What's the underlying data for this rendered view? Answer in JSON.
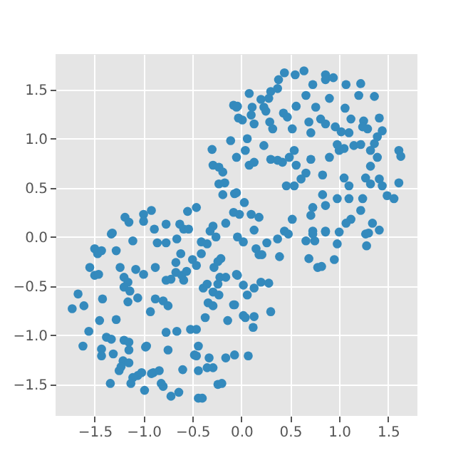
{
  "chart_data": {
    "type": "scatter",
    "x": [
      0.44,
      0.38,
      0.55,
      0.64,
      0.86,
      0.86,
      0.94,
      0.73,
      1.07,
      1.22,
      1.2,
      1.36,
      0.3,
      0.28,
      0.2,
      0.08,
      -0.04,
      0.11,
      0.1,
      0.23,
      0.25,
      0.13,
      0.01,
      0.29,
      0.43,
      0.47,
      0.56,
      0.76,
      0.69,
      0.81,
      0.86,
      0.96,
      1.06,
      1.12,
      1.25,
      1.41,
      1.29,
      1.44,
      1.1,
      1.02,
      0.71,
      0.52,
      0.32,
      0.06,
      0.04,
      0.23,
      0.3,
      0.42,
      0.49,
      0.54,
      0.56,
      0.66,
      0.61,
      0.46,
      0.54,
      0.83,
      0.71,
      0.9,
      1.05,
      1.0,
      1.15,
      1.22,
      1.36,
      1.32,
      1.39,
      1.61,
      1.63,
      1.32,
      1.05,
      1.1,
      1.27,
      1.32,
      1.41,
      1.44,
      1.61,
      1.24,
      1.22,
      1.1,
      0.98,
      0.83,
      0.86,
      0.73,
      0.71,
      1.56,
      1.49,
      -0.07,
      0.03,
      -0.02,
      0.1,
      0.18,
      0.52,
      1.12,
      1.07,
      1.34,
      1.41,
      1.27,
      0.73,
      0.86,
      0.13,
      0.44,
      0.08,
      0.13,
      0.98,
      0.37,
      0.37,
      0.66,
      0.9,
      1.24,
      1.39,
      -0.08,
      -0.05,
      -0.03,
      -0.11,
      -0.3,
      -0.29,
      -0.23,
      -0.19,
      -0.17,
      -0.23,
      -0.19,
      -0.05,
      -0.05,
      -0.46,
      -0.55,
      -0.08,
      -0.92,
      -1.0,
      -1.19,
      -1.15,
      -1.0,
      -0.77,
      -0.89,
      -0.63,
      -0.59,
      -0.54,
      -0.29,
      -0.16,
      -0.32,
      -1.32,
      -1.5,
      -1.47,
      -1.43,
      -1.28,
      -1.11,
      -1.33,
      -0.86,
      -0.77,
      -0.66,
      -0.62,
      -0.67,
      -0.5,
      -0.41,
      -0.35,
      -0.41,
      -0.26,
      -1.55,
      -1.5,
      -1.46,
      -1.24,
      -1.2,
      -1.16,
      -1.08,
      -1.0,
      -0.88,
      -0.77,
      -0.72,
      -0.67,
      -0.59,
      -0.61,
      -0.56,
      -0.46,
      -0.28,
      -0.24,
      -0.21,
      -0.22,
      -0.16,
      -0.05,
      -1.2,
      -1.14,
      -1.16,
      -1.06,
      -1.67,
      -1.73,
      -1.61,
      -1.42,
      -1.45,
      -1.28,
      -0.93,
      -0.88,
      -0.8,
      -0.75,
      -0.39,
      -0.35,
      -0.24,
      -0.29,
      -0.23,
      -0.34,
      -0.29,
      -0.08,
      -0.14,
      -0.37,
      -0.52,
      -0.46,
      -0.66,
      -0.77,
      -1.56,
      -1.62,
      -1.38,
      -1.33,
      -1.43,
      -1.43,
      -1.31,
      -1.2,
      -1.15,
      -1.15,
      -0.98,
      -0.75,
      -1.21,
      -1.25,
      -1.23,
      -1.15,
      -1.06,
      -1.11,
      -1.02,
      -1.13,
      -1.34,
      -0.99,
      -0.9,
      -0.84,
      -0.92,
      -0.8,
      -0.82,
      -0.72,
      -0.64,
      -0.6,
      -0.48,
      -0.46,
      -0.44,
      -0.44,
      -0.33,
      -0.35,
      -0.29,
      -0.16,
      -0.24,
      -0.2,
      -0.44,
      -0.4,
      -0.97,
      -0.04,
      0.02,
      0.15,
      0.18,
      0.21,
      0.26,
      0.37,
      0.39,
      0.48,
      0.66,
      0.75,
      0.73,
      0.86,
      0.98,
      0.95,
      0.69,
      0.78,
      0.82,
      1.0,
      1.28,
      1.3,
      -0.04,
      0.02,
      0.13,
      0.2,
      0.28,
      0.06,
      -0.07,
      0.02,
      0.04,
      0.13,
      0.12,
      0.3,
      -0.07,
      0.07
    ],
    "values": [
      1.67,
      1.6,
      1.65,
      1.69,
      1.65,
      1.6,
      1.62,
      1.55,
      1.55,
      1.56,
      1.44,
      1.43,
      1.48,
      1.41,
      1.4,
      1.46,
      1.33,
      1.32,
      1.24,
      1.32,
      1.28,
      1.15,
      1.19,
      1.17,
      1.26,
      1.22,
      1.33,
      1.32,
      1.17,
      1.2,
      1.15,
      1.12,
      1.31,
      1.2,
      1.18,
      1.21,
      1.1,
      1.08,
      1.06,
      1.07,
      1.06,
      1.1,
      1.1,
      1.0,
      0.88,
      0.93,
      0.79,
      0.76,
      0.81,
      0.88,
      0.73,
      0.65,
      0.59,
      0.52,
      0.52,
      0.63,
      0.79,
      0.81,
      0.9,
      0.88,
      0.93,
      0.94,
      0.95,
      0.88,
      0.81,
      0.88,
      0.82,
      0.72,
      0.6,
      0.52,
      0.6,
      0.54,
      0.59,
      0.52,
      0.55,
      0.39,
      0.27,
      0.39,
      0.39,
      0.43,
      0.32,
      0.3,
      0.22,
      0.39,
      0.42,
      0.44,
      0.35,
      0.23,
      0.23,
      0.2,
      0.18,
      0.18,
      0.14,
      0.14,
      0.07,
      0.03,
      0.06,
      0.06,
      0.07,
      0.06,
      0.73,
      0.76,
      0.94,
      0.78,
      1.51,
      1.44,
      1.41,
      1.12,
      1.02,
      1.34,
      1.32,
      1.21,
      0.98,
      0.89,
      0.73,
      0.71,
      0.66,
      0.55,
      0.54,
      0.43,
      0.45,
      0.81,
      0.3,
      0.26,
      0.25,
      0.27,
      0.23,
      0.2,
      0.15,
      0.16,
      0.13,
      0.08,
      0.13,
      0.08,
      0.08,
      0.11,
      0.14,
      0.06,
      0.04,
      -0.12,
      -0.17,
      -0.14,
      -0.14,
      -0.04,
      0.03,
      -0.06,
      -0.06,
      -0.02,
      -0.17,
      -0.26,
      -0.23,
      -0.17,
      -0.07,
      -0.05,
      0.0,
      -0.31,
      -0.39,
      -0.38,
      -0.31,
      -0.41,
      -0.46,
      -0.33,
      -0.38,
      -0.31,
      -0.44,
      -0.43,
      -0.36,
      -0.44,
      -0.39,
      -0.35,
      -0.29,
      -0.31,
      -0.25,
      -0.22,
      -0.41,
      -0.41,
      -0.38,
      -0.51,
      -0.55,
      -0.66,
      -0.62,
      -0.58,
      -0.73,
      -0.7,
      -0.63,
      -0.85,
      -0.84,
      -0.76,
      -0.63,
      -0.65,
      -0.7,
      -0.52,
      -0.48,
      -0.48,
      -0.56,
      -0.59,
      -0.67,
      -0.7,
      -0.69,
      -0.85,
      -0.82,
      -0.94,
      -0.94,
      -0.96,
      -0.97,
      -0.96,
      -1.11,
      -1.02,
      -1.04,
      -1.14,
      -1.21,
      -1.19,
      -1.05,
      -1.07,
      -1.15,
      -1.12,
      -1.15,
      -1.26,
      -1.36,
      -1.32,
      -1.28,
      -1.41,
      -1.43,
      -1.38,
      -1.49,
      -1.49,
      -1.56,
      -1.38,
      -1.36,
      -1.39,
      -1.52,
      -1.49,
      -1.62,
      -1.58,
      -1.35,
      -1.2,
      -1.21,
      -1.11,
      -1.36,
      -1.23,
      -1.33,
      -1.33,
      -1.23,
      -1.5,
      -1.49,
      -1.64,
      -1.64,
      -1.11,
      0.0,
      -0.05,
      -0.12,
      -0.18,
      -0.18,
      -0.06,
      -0.02,
      -0.2,
      0.03,
      -0.04,
      -0.04,
      0.03,
      0.05,
      -0.07,
      -0.23,
      -0.22,
      -0.31,
      -0.3,
      0.05,
      -0.09,
      0.04,
      -0.39,
      -0.49,
      -0.52,
      -0.46,
      -0.47,
      -0.59,
      -0.69,
      -0.8,
      -0.82,
      -0.81,
      -0.92,
      -0.76,
      -1.2,
      -1.21
    ],
    "color": "#348abd",
    "marker": "circle",
    "xlim": [
      -1.9,
      1.8
    ],
    "ylim": [
      -1.82,
      1.86
    ],
    "xticks": [
      {
        "value": -1.5,
        "label": "−1.5"
      },
      {
        "value": -1.0,
        "label": "−1.0"
      },
      {
        "value": -0.5,
        "label": "−0.5"
      },
      {
        "value": 0.0,
        "label": "0.0"
      },
      {
        "value": 0.5,
        "label": "0.5"
      },
      {
        "value": 1.0,
        "label": "1.0"
      },
      {
        "value": 1.5,
        "label": "1.5"
      }
    ],
    "yticks": [
      {
        "value": -1.5,
        "label": "−1.5"
      },
      {
        "value": -1.0,
        "label": "−1.0"
      },
      {
        "value": -0.5,
        "label": "−0.5"
      },
      {
        "value": 0.0,
        "label": "0.0"
      },
      {
        "value": 0.5,
        "label": "0.5"
      },
      {
        "value": 1.0,
        "label": "1.0"
      },
      {
        "value": 1.5,
        "label": "1.5"
      }
    ],
    "grid": true
  }
}
